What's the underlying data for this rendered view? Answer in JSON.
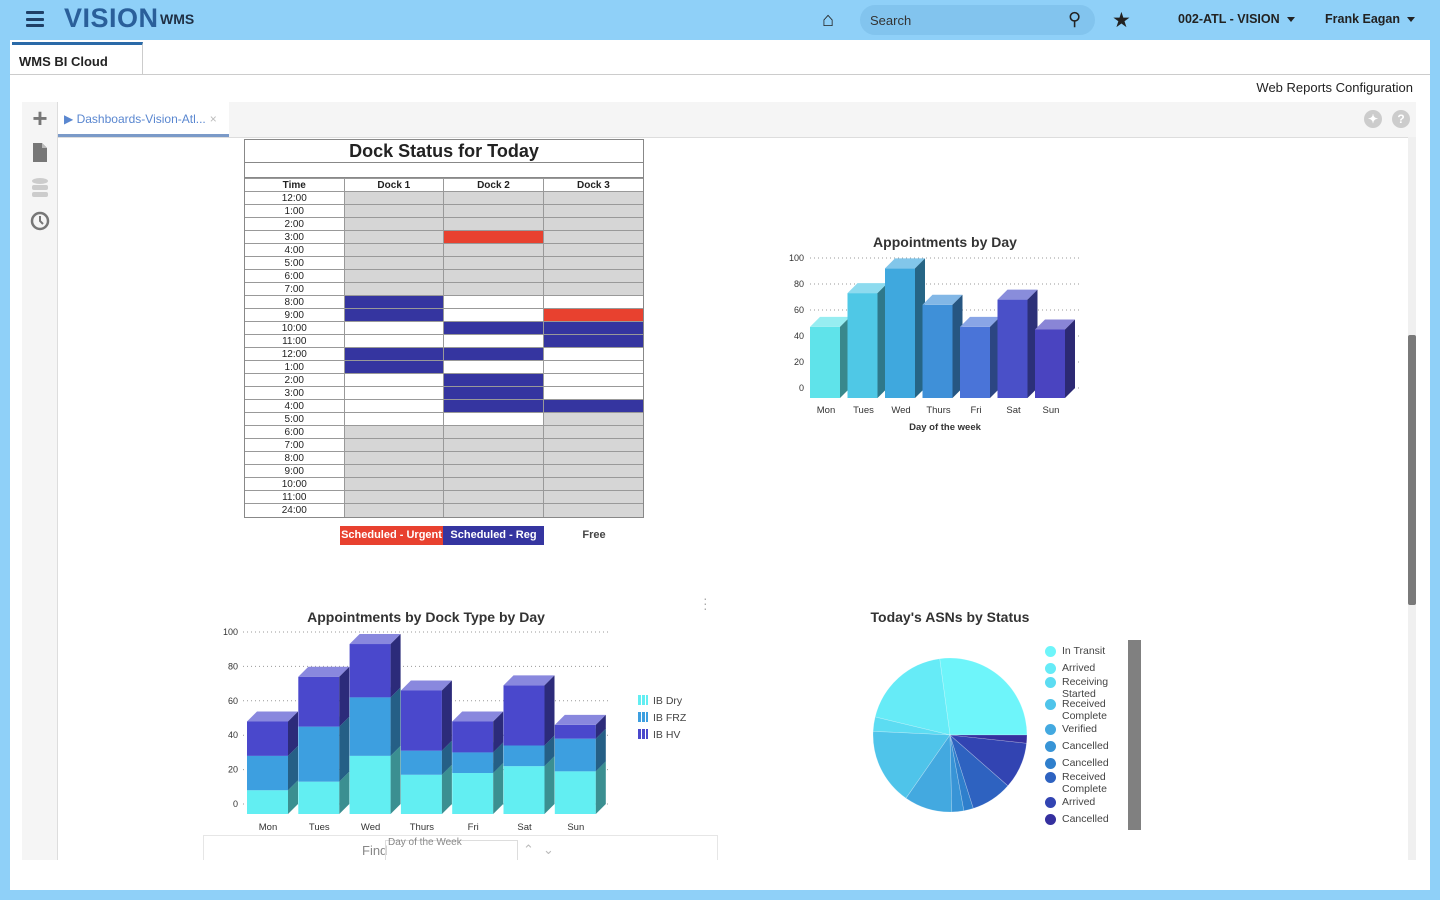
{
  "header": {
    "logo": "VISION",
    "app": "WMS",
    "search_placeholder": "Search",
    "facility": "002-ATL - VISION",
    "user": "Frank Eagan"
  },
  "tabs": [
    {
      "label": "WMS BI Cloud"
    }
  ],
  "web_reports_link": "Web Reports Configuration",
  "dashboard_tab": {
    "label": "Dashboards-Vision-Atl...",
    "close": "×"
  },
  "sidebar_icons": [
    "plus-icon",
    "document-icon",
    "database-icon",
    "clock-icon"
  ],
  "dock_status": {
    "title": "Dock Status for Today",
    "columns": [
      "Time",
      "Dock 1",
      "Dock 2",
      "Dock 3"
    ],
    "rows": [
      {
        "time": "12:00",
        "d": [
          "off",
          "off",
          "off"
        ]
      },
      {
        "time": "1:00",
        "d": [
          "off",
          "off",
          "off"
        ]
      },
      {
        "time": "2:00",
        "d": [
          "off",
          "off",
          "off"
        ]
      },
      {
        "time": "3:00",
        "d": [
          "off",
          "urgent",
          "off"
        ]
      },
      {
        "time": "4:00",
        "d": [
          "off",
          "off",
          "off"
        ]
      },
      {
        "time": "5:00",
        "d": [
          "off",
          "off",
          "off"
        ]
      },
      {
        "time": "6:00",
        "d": [
          "off",
          "off",
          "off"
        ]
      },
      {
        "time": "7:00",
        "d": [
          "off",
          "off",
          "off"
        ]
      },
      {
        "time": "8:00",
        "d": [
          "reg",
          "free",
          "free"
        ]
      },
      {
        "time": "9:00",
        "d": [
          "reg",
          "free",
          "urgent"
        ]
      },
      {
        "time": "10:00",
        "d": [
          "free",
          "reg",
          "reg"
        ]
      },
      {
        "time": "11:00",
        "d": [
          "free",
          "free",
          "reg"
        ]
      },
      {
        "time": "12:00",
        "d": [
          "reg",
          "reg",
          "free"
        ]
      },
      {
        "time": "1:00",
        "d": [
          "reg",
          "free",
          "free"
        ]
      },
      {
        "time": "2:00",
        "d": [
          "free",
          "reg",
          "free"
        ]
      },
      {
        "time": "3:00",
        "d": [
          "free",
          "reg",
          "free"
        ]
      },
      {
        "time": "4:00",
        "d": [
          "free",
          "reg",
          "reg"
        ]
      },
      {
        "time": "5:00",
        "d": [
          "free",
          "free",
          "off"
        ]
      },
      {
        "time": "6:00",
        "d": [
          "off",
          "off",
          "off"
        ]
      },
      {
        "time": "7:00",
        "d": [
          "off",
          "off",
          "off"
        ]
      },
      {
        "time": "8:00",
        "d": [
          "off",
          "off",
          "off"
        ]
      },
      {
        "time": "9:00",
        "d": [
          "off",
          "off",
          "off"
        ]
      },
      {
        "time": "10:00",
        "d": [
          "off",
          "off",
          "off"
        ]
      },
      {
        "time": "11:00",
        "d": [
          "off",
          "off",
          "off"
        ]
      },
      {
        "time": "24:00",
        "d": [
          "off",
          "off",
          "off"
        ]
      }
    ],
    "legend": {
      "urgent": "Scheduled - Urgent",
      "reg": "Scheduled - Reg",
      "free": "Free"
    },
    "colors": {
      "urgent": "#e8412f",
      "reg": "#3535a0",
      "free": "#ffffff",
      "off": "#d6d6d6"
    }
  },
  "find": {
    "label": "Find"
  },
  "chart_data": [
    {
      "type": "bar",
      "title": "Appointments by Day",
      "xlabel": "Day of the week",
      "ylabel": "",
      "categories": [
        "Mon",
        "Tues",
        "Wed",
        "Thurs",
        "Fri",
        "Sat",
        "Sun"
      ],
      "values": [
        47,
        73,
        92,
        64,
        47,
        68,
        45
      ],
      "ylim": [
        0,
        100
      ],
      "yticks": [
        "0",
        "20",
        "40",
        "60",
        "80",
        "100"
      ],
      "grid": true,
      "colors": [
        "#5fe3ea",
        "#4fc8e6",
        "#3fa8de",
        "#3f90d8",
        "#4a74d8",
        "#4a50c8",
        "#4a44c0"
      ]
    },
    {
      "type": "bar",
      "stacked": true,
      "title": "Appointments by Dock Type by Day",
      "xlabel": "Day of the Week",
      "ylabel": "",
      "categories": [
        "Mon",
        "Tues",
        "Wed",
        "Thurs",
        "Fri",
        "Sat",
        "Sun"
      ],
      "ylim": [
        0,
        100
      ],
      "yticks": [
        "0",
        "20",
        "40",
        "60",
        "80",
        "100"
      ],
      "grid": true,
      "legend": "right",
      "series": [
        {
          "name": "IB Dry",
          "values": [
            8,
            13,
            28,
            17,
            18,
            22,
            19
          ],
          "color": "#62eef2"
        },
        {
          "name": "IB FRZ",
          "values": [
            20,
            32,
            34,
            14,
            12,
            12,
            19
          ],
          "color": "#3d9fe0"
        },
        {
          "name": "IB HV",
          "values": [
            20,
            29,
            31,
            35,
            18,
            35,
            8
          ],
          "color": "#4a48cc"
        }
      ]
    },
    {
      "type": "pie",
      "title": "Today's ASNs by Status",
      "legend": "right",
      "labels": [
        "In Transit",
        "Arrived",
        "Receiving Started",
        "Received Complete",
        "Verified",
        "Cancelled",
        "Cancelled",
        "Received Complete",
        "Arrived",
        "Cancelled"
      ],
      "values": [
        27,
        19,
        3,
        16,
        10,
        2.5,
        2,
        8.6,
        9.7,
        1.7
      ],
      "colors": [
        "#6ef5fa",
        "#66ebf7",
        "#5cdcf2",
        "#4fc4ea",
        "#43a9e0",
        "#3894d6",
        "#2f7fcc",
        "#2e62c0",
        "#3244b2",
        "#35309f"
      ]
    }
  ]
}
